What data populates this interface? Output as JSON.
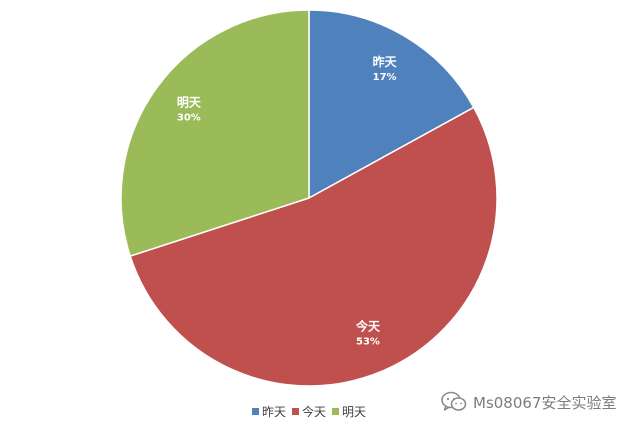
{
  "chart_data": {
    "type": "pie",
    "title": "",
    "categories": [
      "昨天",
      "今天",
      "明天"
    ],
    "values": [
      17,
      53,
      30
    ],
    "value_labels": [
      "17%",
      "53%",
      "30%"
    ],
    "colors": [
      "#4F81BD",
      "#C0504D",
      "#9BBB59"
    ],
    "start_angle_deg": 0,
    "direction": "clockwise",
    "legend": {
      "placement": "bottom",
      "entries": [
        "昨天",
        "今天",
        "明天"
      ]
    }
  },
  "watermark": {
    "text": "Ms08067安全实验室",
    "icon": "wechat-icon"
  }
}
